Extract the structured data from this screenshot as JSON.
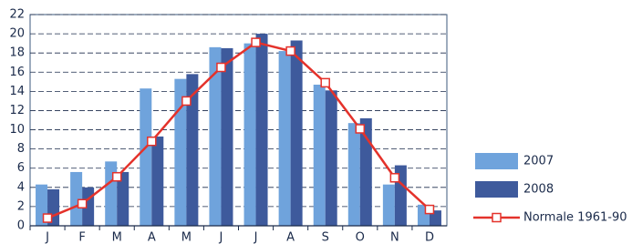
{
  "chart_data": {
    "type": "bar",
    "categories": [
      "J",
      "F",
      "M",
      "A",
      "M",
      "J",
      "J",
      "A",
      "S",
      "O",
      "N",
      "D"
    ],
    "series": [
      {
        "name": "2007",
        "color": "#6fa3dc",
        "values": [
          4.3,
          5.6,
          6.7,
          14.3,
          15.3,
          18.6,
          19.0,
          18.2,
          14.7,
          10.7,
          4.3,
          2.2
        ]
      },
      {
        "name": "2008",
        "color": "#3e5a9c",
        "values": [
          3.8,
          4.0,
          5.6,
          9.3,
          15.8,
          18.5,
          20.0,
          19.3,
          14.1,
          11.2,
          6.3,
          1.6
        ]
      },
      {
        "name": "Normale 1961-90",
        "type": "line",
        "color": "#e4322b",
        "values": [
          0.8,
          2.3,
          5.1,
          8.8,
          13.0,
          16.5,
          19.1,
          18.2,
          14.9,
          10.1,
          5.0,
          1.7
        ]
      }
    ],
    "ylim": [
      0,
      22
    ],
    "yticks": [
      0,
      2,
      4,
      6,
      8,
      10,
      12,
      14,
      16,
      18,
      20,
      22
    ],
    "grid": true
  }
}
